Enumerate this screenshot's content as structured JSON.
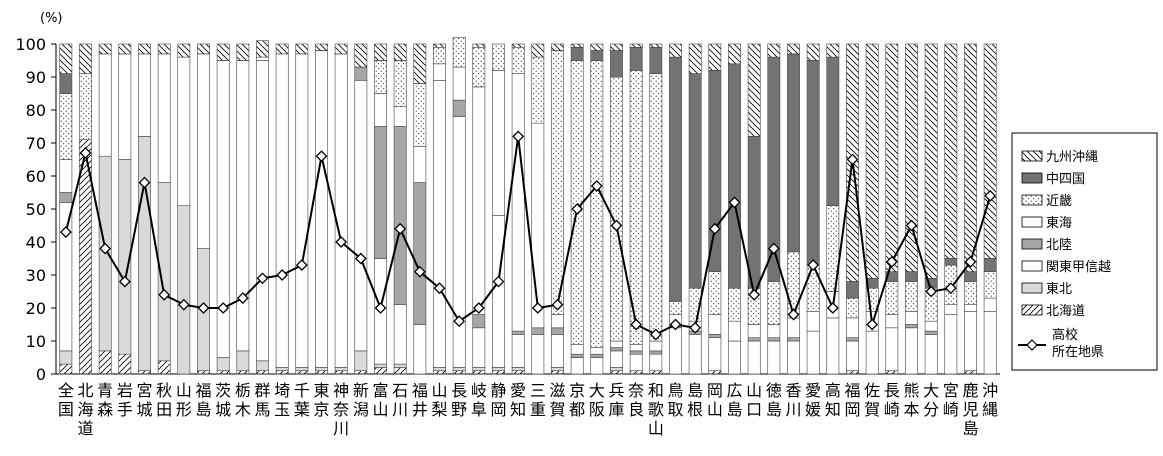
{
  "chart_data": {
    "type": "bar",
    "stacked": true,
    "unit": "(%)",
    "ylim": [
      0,
      100
    ],
    "yticks": [
      0,
      10,
      20,
      30,
      40,
      50,
      60,
      70,
      80,
      90,
      100
    ],
    "categories": [
      "全国",
      "北海道",
      "青森",
      "岩手",
      "宮城",
      "秋田",
      "山形",
      "福島",
      "茨城",
      "栃木",
      "群馬",
      "埼玉",
      "千葉",
      "東京",
      "神奈川",
      "新潟",
      "富山",
      "石川",
      "福井",
      "山梨",
      "長野",
      "岐阜",
      "静岡",
      "愛知",
      "三重",
      "滋賀",
      "京都",
      "大阪",
      "兵庫",
      "奈良",
      "和歌山",
      "鳥取",
      "島根",
      "岡山",
      "広島",
      "山口",
      "徳島",
      "香川",
      "愛媛",
      "高知",
      "福岡",
      "佐賀",
      "長崎",
      "熊本",
      "大分",
      "宮崎",
      "鹿児島",
      "沖縄"
    ],
    "series": [
      {
        "name": "北海道",
        "pattern": "diag-up",
        "values": [
          3,
          71,
          7,
          6,
          1,
          4,
          0,
          1,
          1,
          1,
          1,
          1,
          1,
          1,
          1,
          1,
          2,
          2,
          0,
          1,
          1,
          1,
          1,
          1,
          0,
          1,
          0,
          0,
          1,
          1,
          1,
          0,
          0,
          1,
          0,
          0,
          0,
          0,
          0,
          0,
          1,
          0,
          1,
          0,
          0,
          0,
          1,
          0
        ]
      },
      {
        "name": "東北",
        "pattern": "lightgray",
        "values": [
          4,
          0,
          59,
          59,
          71,
          54,
          51,
          37,
          4,
          6,
          3,
          1,
          1,
          1,
          1,
          6,
          1,
          1,
          0,
          1,
          1,
          1,
          1,
          1,
          0,
          1,
          0,
          0,
          1,
          0,
          0,
          0,
          0,
          0,
          0,
          0,
          0,
          0,
          0,
          0,
          0,
          0,
          0,
          0,
          0,
          0,
          0,
          0
        ]
      },
      {
        "name": "関東甲信越",
        "pattern": "white",
        "values": [
          45,
          0,
          31,
          32,
          25,
          39,
          45,
          59,
          90,
          88,
          91,
          95,
          95,
          96,
          95,
          82,
          32,
          18,
          15,
          87,
          76,
          12,
          46,
          10,
          12,
          10,
          5,
          5,
          5,
          5,
          5,
          14,
          12,
          10,
          10,
          10,
          10,
          10,
          13,
          17,
          9,
          13,
          13,
          14,
          12,
          18,
          18,
          19
        ]
      },
      {
        "name": "北陸",
        "pattern": "gray",
        "values": [
          3,
          0,
          0,
          0,
          0,
          0,
          0,
          0,
          0,
          0,
          0,
          0,
          0,
          0,
          0,
          4,
          40,
          54,
          43,
          0,
          5,
          4,
          0,
          1,
          2,
          2,
          1,
          1,
          1,
          1,
          1,
          1,
          1,
          1,
          0,
          1,
          1,
          1,
          0,
          0,
          1,
          0,
          0,
          1,
          1,
          0,
          0,
          0
        ]
      },
      {
        "name": "東海",
        "pattern": "white",
        "values": [
          10,
          0,
          0,
          0,
          0,
          0,
          0,
          0,
          0,
          0,
          1,
          0,
          0,
          0,
          0,
          0,
          10,
          6,
          11,
          5,
          10,
          69,
          44,
          78,
          62,
          4,
          3,
          2,
          2,
          2,
          3,
          3,
          3,
          6,
          6,
          4,
          4,
          6,
          6,
          8,
          6,
          6,
          4,
          4,
          3,
          3,
          2,
          4
        ]
      },
      {
        "name": "近畿",
        "pattern": "dots",
        "values": [
          20,
          20,
          0,
          0,
          0,
          0,
          0,
          0,
          0,
          0,
          0,
          0,
          0,
          0,
          0,
          0,
          10,
          14,
          19,
          5,
          9,
          12,
          8,
          8,
          20,
          80,
          86,
          87,
          80,
          83,
          81,
          4,
          10,
          13,
          10,
          11,
          13,
          20,
          14,
          26,
          6,
          7,
          10,
          9,
          10,
          12,
          7,
          8
        ]
      },
      {
        "name": "中四国",
        "pattern": "darkgray",
        "values": [
          6,
          0,
          0,
          0,
          0,
          0,
          0,
          0,
          0,
          0,
          0,
          0,
          0,
          0,
          0,
          0,
          0,
          0,
          0,
          0,
          0,
          0,
          0,
          0,
          0,
          0,
          4,
          3,
          8,
          7,
          8,
          74,
          65,
          61,
          68,
          46,
          68,
          60,
          62,
          45,
          5,
          3,
          3,
          3,
          3,
          2,
          3,
          4
        ]
      },
      {
        "name": "九州沖縄",
        "pattern": "diag-down",
        "values": [
          9,
          9,
          3,
          3,
          3,
          3,
          4,
          3,
          5,
          5,
          5,
          3,
          3,
          2,
          3,
          7,
          5,
          5,
          12,
          1,
          0,
          1,
          0,
          1,
          4,
          2,
          1,
          2,
          2,
          1,
          1,
          4,
          9,
          8,
          6,
          28,
          4,
          3,
          5,
          4,
          72,
          71,
          69,
          69,
          71,
          65,
          69,
          65
        ]
      }
    ],
    "line": {
      "name": "高校所在地県",
      "values": [
        43,
        67,
        38,
        28,
        58,
        24,
        21,
        20,
        20,
        23,
        29,
        30,
        33,
        66,
        40,
        35,
        20,
        44,
        31,
        26,
        16,
        20,
        28,
        72,
        20,
        21,
        50,
        57,
        45,
        15,
        12,
        15,
        14,
        44,
        52,
        24,
        38,
        18,
        33,
        20,
        65,
        15,
        34,
        45,
        25,
        26,
        34,
        54
      ]
    },
    "legend": {
      "placement": "right",
      "entries": [
        "九州沖縄",
        "中四国",
        "近畿",
        "東海",
        "北陸",
        "関東甲信越",
        "東北",
        "北海道",
        "高校所在地県"
      ],
      "line_label_lines": [
        "高校",
        "所在地県"
      ]
    }
  }
}
